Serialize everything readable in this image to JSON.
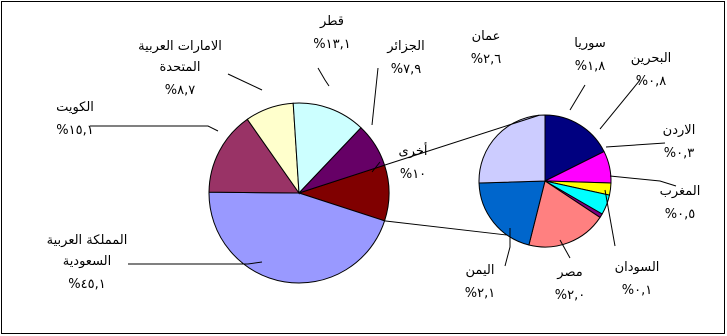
{
  "chart_data": {
    "type": "pie",
    "subtype": "pie-of-pie",
    "legend": "none",
    "main_pie": {
      "slices": [
        {
          "name_lines": [
            "المملكة العربية",
            "السعودية"
          ],
          "value_label": "%٤٥,١",
          "value": 45.1,
          "color": "#9999ff"
        },
        {
          "name_lines": [
            "الكويت"
          ],
          "value_label": "%١٥,١",
          "value": 15.1,
          "color": "#993366"
        },
        {
          "name_lines": [
            "الامارات العربية",
            "المتحدة"
          ],
          "value_label": "%٨,٧",
          "value": 8.7,
          "color": "#ffffcc"
        },
        {
          "name_lines": [
            "قطر"
          ],
          "value_label": "%١٣,١",
          "value": 13.1,
          "color": "#ccffff"
        },
        {
          "name_lines": [
            "الجزائر"
          ],
          "value_label": "%٧,٩",
          "value": 7.9,
          "color": "#660066"
        },
        {
          "name_lines": [
            "أخرى"
          ],
          "value_label": "%١٠",
          "value": 10.0,
          "color": "#800000"
        }
      ]
    },
    "secondary_pie": {
      "slices": [
        {
          "name_lines": [
            "سوريا"
          ],
          "value_label": "%١,٨",
          "value": 1.8,
          "color": "#000080"
        },
        {
          "name_lines": [
            "البحرين"
          ],
          "value_label": "%٠,٨",
          "value": 0.8,
          "color": "#ff00ff"
        },
        {
          "name_lines": [
            "الاردن"
          ],
          "value_label": "%٠,٣",
          "value": 0.3,
          "color": "#ffff00"
        },
        {
          "name_lines": [
            "المغرب"
          ],
          "value_label": "%٠,٥",
          "value": 0.5,
          "color": "#00ffff"
        },
        {
          "name_lines": [
            "السودان"
          ],
          "value_label": "%٠,١",
          "value": 0.1,
          "color": "#800080"
        },
        {
          "name_lines": [
            "مصر"
          ],
          "value_label": "%٢,٠",
          "value": 2.0,
          "color": "#ff8080"
        },
        {
          "name_lines": [
            "اليمن"
          ],
          "value_label": "%٢,١",
          "value": 2.1,
          "color": "#0066cc"
        },
        {
          "name_lines": [
            "عمان"
          ],
          "value_label": "%٢,٦",
          "value": 2.6,
          "color": "#ccccff"
        }
      ]
    }
  }
}
